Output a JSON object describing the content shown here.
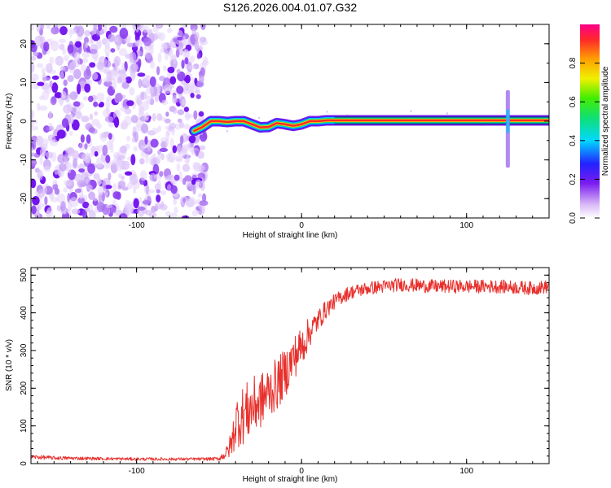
{
  "title": "S126.2026.004.01.07.G32",
  "chart_data": [
    {
      "type": "heatmap",
      "name": "spectrogram",
      "xlabel": "Height of straight line (km)",
      "ylabel": "Frequency (Hz)",
      "xlim": [
        -164,
        150
      ],
      "ylim": [
        -25,
        25
      ],
      "xticks": [
        -100,
        0,
        100
      ],
      "xtick_labels": [
        "-100",
        "0",
        "100"
      ],
      "yticks": [
        -20,
        -10,
        0,
        10,
        20
      ],
      "ytick_labels": [
        "-20",
        "-10",
        "0",
        "10",
        "20"
      ],
      "noise_region_x": [
        -164,
        -58
      ],
      "signal_ridge": {
        "x": [
          -65,
          -60,
          -55,
          -50,
          -45,
          -40,
          -35,
          -30,
          -25,
          -20,
          -15,
          -10,
          -5,
          0,
          5,
          10,
          15,
          20,
          30,
          60,
          100,
          125,
          150
        ],
        "y": [
          -2.5,
          -1.5,
          0.0,
          0.0,
          -0.2,
          0.0,
          0.0,
          -0.8,
          -1.6,
          -1.5,
          -0.5,
          -0.8,
          -1.2,
          -0.8,
          0.0,
          0.0,
          0.2,
          0.2,
          0.2,
          0.2,
          0.2,
          0.2,
          0.2
        ]
      },
      "spike_x": 125,
      "colorbar": {
        "label": "Normalized spectral amplitude",
        "range": [
          0,
          1
        ],
        "ticks": [
          0.0,
          0.2,
          0.4,
          0.6,
          0.8
        ],
        "tick_labels": [
          "0.0",
          "0.2",
          "0.4",
          "0.6",
          "0.8"
        ]
      }
    },
    {
      "type": "line",
      "name": "snr",
      "xlabel": "Height of straight line (km)",
      "ylabel": "SNR (10 * v/v)",
      "xlim": [
        -164,
        150
      ],
      "ylim": [
        0,
        520
      ],
      "xticks": [
        -100,
        0,
        100
      ],
      "xtick_labels": [
        "-100",
        "0",
        "100"
      ],
      "yticks": [
        0,
        100,
        200,
        300,
        400,
        500
      ],
      "ytick_labels": [
        "0",
        "100",
        "200",
        "300",
        "400",
        "500"
      ],
      "series": [
        {
          "name": "SNR",
          "color": "#e8302c",
          "envelope": {
            "x": [
              -164,
              -150,
              -120,
              -100,
              -60,
              -50,
              -45,
              -42,
              -40,
              -35,
              -30,
              -25,
              -20,
              -15,
              -10,
              -5,
              0,
              5,
              10,
              15,
              20,
              25,
              30,
              40,
              60,
              80,
              100,
              120,
              140,
              150
            ],
            "mean": [
              18,
              15,
              13,
              12,
              12,
              13,
              30,
              60,
              110,
              130,
              150,
              165,
              190,
              210,
              240,
              280,
              310,
              350,
              380,
              410,
              430,
              445,
              455,
              465,
              475,
              470,
              470,
              470,
              465,
              470
            ],
            "spread": [
              6,
              5,
              4,
              4,
              4,
              5,
              20,
              40,
              70,
              80,
              80,
              75,
              70,
              70,
              65,
              60,
              55,
              40,
              30,
              25,
              20,
              20,
              18,
              18,
              18,
              18,
              18,
              18,
              18,
              18
            ]
          }
        }
      ]
    }
  ]
}
